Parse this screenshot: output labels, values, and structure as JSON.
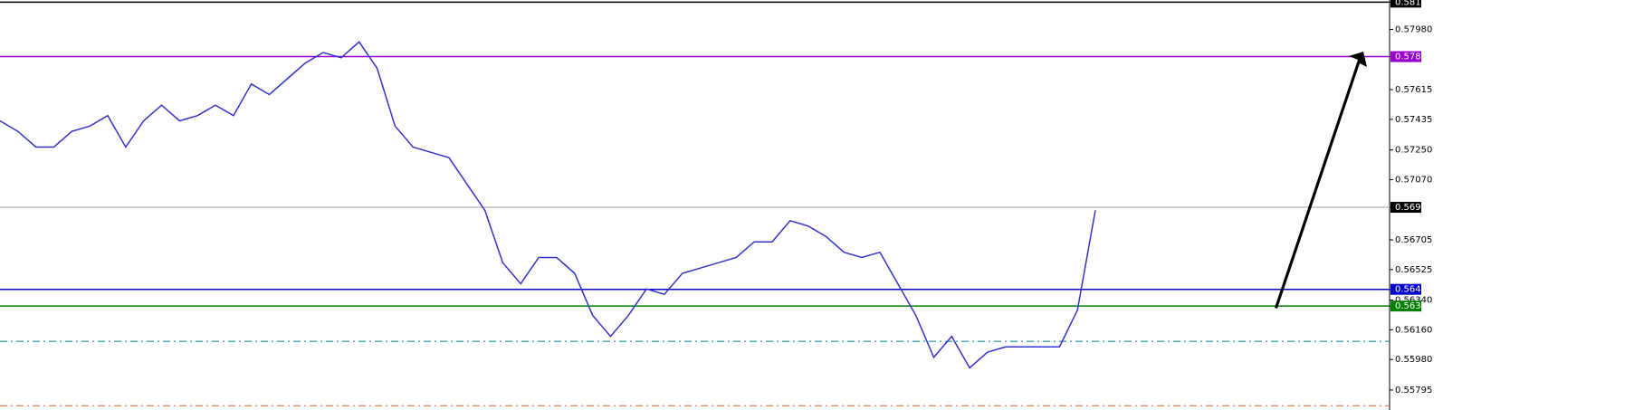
{
  "chart_data": {
    "type": "line",
    "ylim": [
      0.55674,
      0.58158
    ],
    "yticks": [
      {
        "value": 0.58145,
        "label": "0.58145",
        "highlight": "#000000"
      },
      {
        "value": 0.5798,
        "label": "0.57980"
      },
      {
        "value": 0.57815,
        "label": "0.57815",
        "highlight": "#9900cc"
      },
      {
        "value": 0.57615,
        "label": "0.57615"
      },
      {
        "value": 0.57435,
        "label": "0.57435"
      },
      {
        "value": 0.5725,
        "label": "0.57250"
      },
      {
        "value": 0.5707,
        "label": "0.57070"
      },
      {
        "value": 0.56902,
        "label": "0.56902",
        "highlight": "#000000"
      },
      {
        "value": 0.56705,
        "label": "0.56705"
      },
      {
        "value": 0.56525,
        "label": "0.56525"
      },
      {
        "value": 0.56405,
        "label": "0.56405",
        "highlight": "#0000cc"
      },
      {
        "value": 0.5634,
        "label": "0.56340"
      },
      {
        "value": 0.56304,
        "label": "0.56304",
        "highlight": "#008000"
      },
      {
        "value": 0.5616,
        "label": "0.56160"
      },
      {
        "value": 0.5598,
        "label": "0.55980"
      },
      {
        "value": 0.55795,
        "label": "0.55795"
      }
    ],
    "levels": [
      {
        "value": 0.58145,
        "color": "#000000",
        "style": "solid"
      },
      {
        "value": 0.57815,
        "color": "#9900cc",
        "style": "solid"
      },
      {
        "value": 0.56902,
        "color": "#c0c0c0",
        "style": "solid"
      },
      {
        "value": 0.56405,
        "color": "#0000cc",
        "style": "solid"
      },
      {
        "value": 0.56304,
        "color": "#008000",
        "style": "solid"
      },
      {
        "value": 0.5609,
        "color": "#008080",
        "style": "dashdot"
      },
      {
        "value": 0.557,
        "color": "#e06020",
        "style": "dashdot"
      }
    ],
    "series": [
      {
        "color": "#3333cc",
        "values": [
          0.57426,
          0.57362,
          0.57267,
          0.57267,
          0.57362,
          0.57394,
          0.57458,
          0.57267,
          0.57426,
          0.57521,
          0.57426,
          0.57458,
          0.57521,
          0.57458,
          0.57649,
          0.57585,
          0.57681,
          0.57776,
          0.5784,
          0.57808,
          0.57904,
          0.57744,
          0.57394,
          0.57267,
          0.57235,
          0.57203,
          0.57044,
          0.56884,
          0.56566,
          0.56439,
          0.56598,
          0.56598,
          0.56502,
          0.56248,
          0.5612,
          0.56248,
          0.56407,
          0.56375,
          0.56502,
          0.56534,
          0.56566,
          0.56598,
          0.56693,
          0.56693,
          0.56821,
          0.56789,
          0.56725,
          0.5663,
          0.56598,
          0.5663,
          0.56439,
          0.56248,
          0.55993,
          0.5612,
          0.55929,
          0.56025,
          0.56056,
          0.56056,
          0.56056,
          0.56056,
          0.56279,
          0.56884
        ]
      }
    ]
  }
}
